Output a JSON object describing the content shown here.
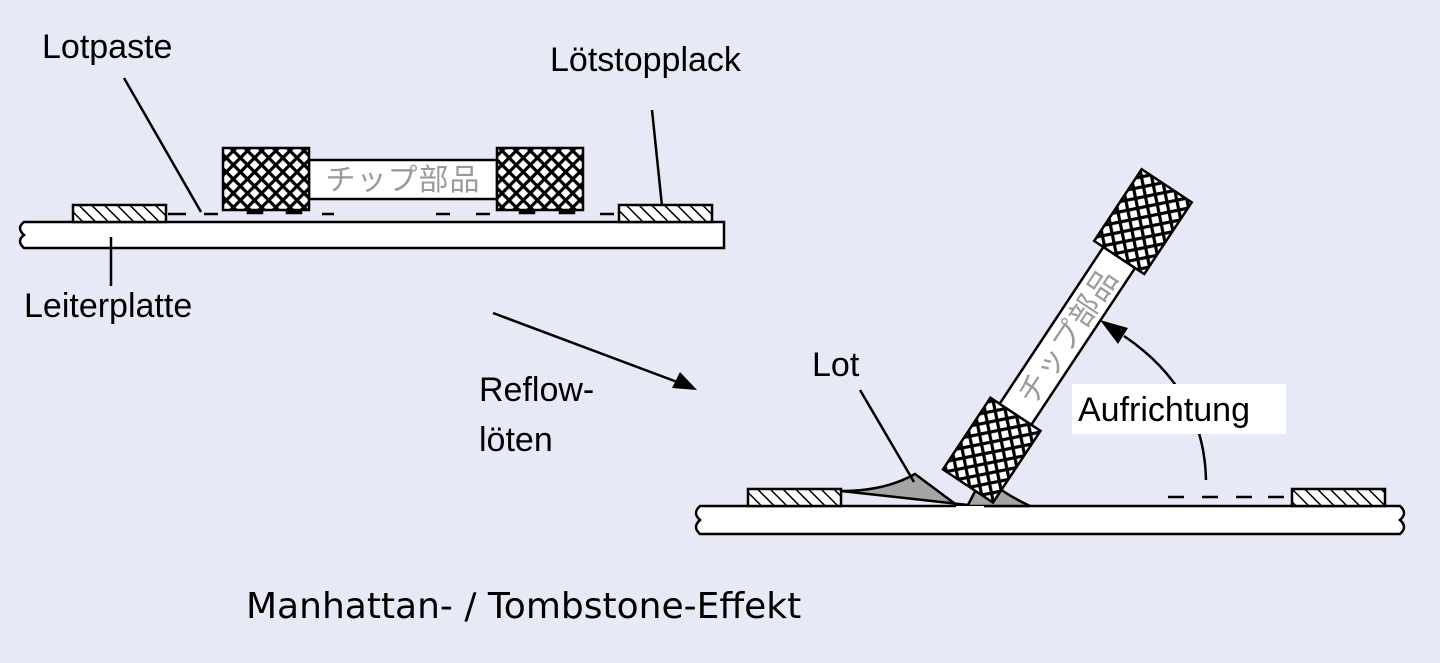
{
  "labels": {
    "solder_paste": "Lotpaste",
    "solder_mask": "Lötstopplack",
    "pcb": "Leiterplatte",
    "reflow_line1": "Reflow-",
    "reflow_line2": "löten",
    "solder": "Lot",
    "lift": "Aufrichtung",
    "chip_text": "チップ部品",
    "chip_text_tilted": "チップ部品"
  },
  "title": "Manhattan- / Tombstone-Effekt",
  "colors": {
    "background": "#e8e9f6",
    "solder": "#a5a5a5",
    "line": "#000000",
    "chip_body": "#ffffff"
  },
  "icons": {
    "arrow": "arrow-right-down-icon",
    "lift_arrow": "curved-arrow-up-icon"
  }
}
